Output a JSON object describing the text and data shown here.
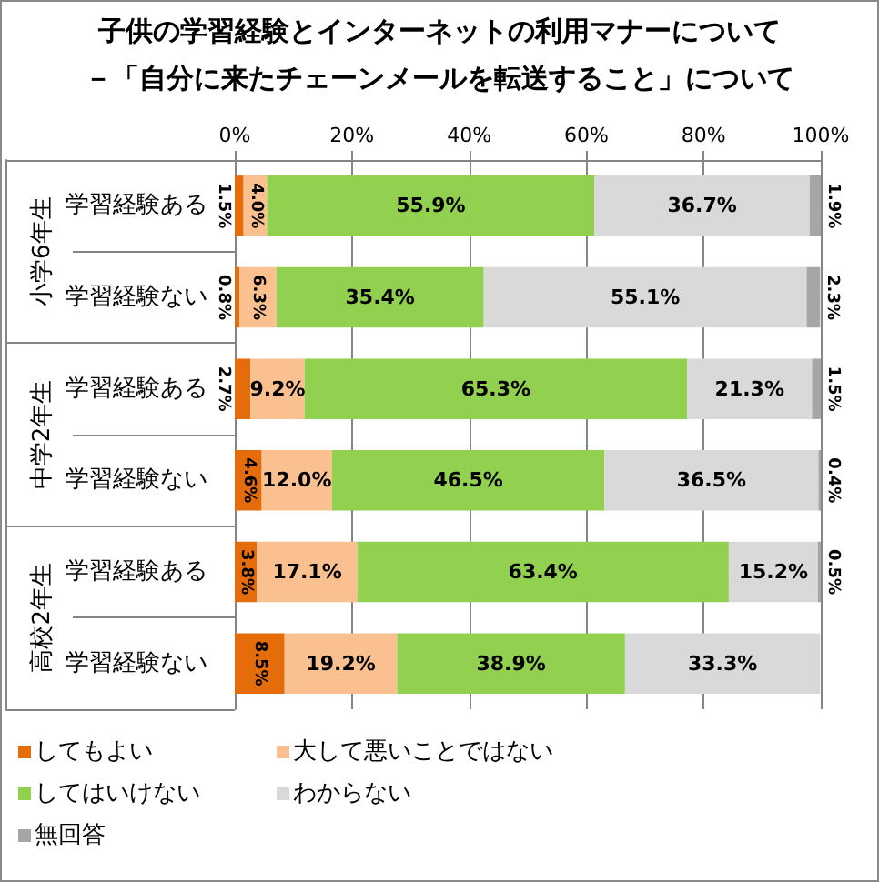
{
  "chart_data": {
    "type": "bar",
    "orientation": "horizontal",
    "stacked": true,
    "title": "子供の学習経験とインターネットの利用マナーについて",
    "subtitle": "－「自分に来たチェーンメールを転送すること」について",
    "categories": [
      "学習経験ある",
      "学習経験ない",
      "学習経験ある",
      "学習経験ない",
      "学習経験ある",
      "学習経験ない"
    ],
    "annotations": [
      "小学6年生",
      "中学2年生",
      "高校2年生"
    ],
    "xlim": [
      0,
      100
    ],
    "xticks": [
      {
        "value": 0,
        "label": "0%"
      },
      {
        "value": 20,
        "label": "20%"
      },
      {
        "value": 40,
        "label": "40%"
      },
      {
        "value": 60,
        "label": "60%"
      },
      {
        "value": 80,
        "label": "80%"
      },
      {
        "value": 100,
        "label": "100%"
      }
    ],
    "grid": "x",
    "legend": "bottom",
    "series": [
      {
        "name": "してもよい",
        "color": "#e46c0a",
        "values": [
          1.5,
          0.8,
          2.7,
          4.6,
          3.8,
          8.5
        ],
        "value_labels": [
          "1.5%",
          "0.8%",
          "2.7%",
          "4.6%",
          "3.8%",
          "8.5%"
        ]
      },
      {
        "name": "大して悪いことではない",
        "color": "#fac090",
        "values": [
          4.0,
          6.3,
          9.2,
          12.0,
          17.1,
          19.2
        ],
        "value_labels": [
          "4.0%",
          "6.3%",
          "9.2%",
          "12.0%",
          "17.1%",
          "19.2%"
        ]
      },
      {
        "name": "してはいけない",
        "color": "#92d050",
        "values": [
          55.9,
          35.4,
          65.3,
          46.5,
          63.4,
          38.9
        ],
        "value_labels": [
          "55.9%",
          "35.4%",
          "65.3%",
          "46.5%",
          "63.4%",
          "38.9%"
        ]
      },
      {
        "name": "わからない",
        "color": "#d9d9d9",
        "values": [
          36.7,
          55.1,
          21.3,
          36.5,
          15.2,
          33.3
        ],
        "value_labels": [
          "36.7%",
          "55.1%",
          "21.3%",
          "36.5%",
          "15.2%",
          "33.3%"
        ]
      },
      {
        "name": "無回答",
        "color": "#a6a6a6",
        "values": [
          1.9,
          2.3,
          1.5,
          0.4,
          0.5,
          null
        ],
        "value_labels": [
          "1.9%",
          "2.3%",
          "1.5%",
          "0.4%",
          "0.5%",
          null
        ]
      }
    ]
  }
}
